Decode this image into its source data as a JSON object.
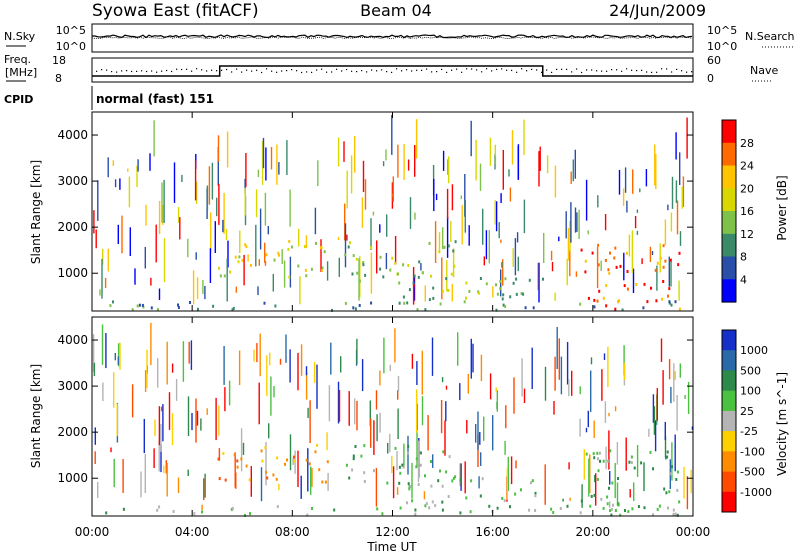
{
  "header": {
    "station": "Syowa East (fitACF)",
    "beam": "Beam 04",
    "date": "24/Jun/2009"
  },
  "noise_panel": {
    "left_label": "N.Sky",
    "right_label": "N.Search",
    "left_ticks": [
      "10^5",
      "10^0"
    ],
    "right_ticks": [
      "10^5",
      "10^0"
    ]
  },
  "freq_panel": {
    "left_label_1": "Freq.",
    "left_label_2": "[MHz]",
    "left_ticks": [
      "18",
      "8"
    ],
    "right_label": "Nave",
    "right_ticks": [
      "60",
      "0"
    ]
  },
  "cpid": {
    "label": "CPID",
    "value": "normal (fast) 151"
  },
  "power_panel": {
    "ylabel": "Slant Range [km]",
    "yticks": [
      "4000",
      "3000",
      "2000",
      "1000"
    ],
    "colorbar_label": "Power [dB]",
    "colorbar_ticks": [
      "28",
      "24",
      "20",
      "16",
      "12",
      "8",
      "4"
    ],
    "colorbar_colors": [
      "#ff0000",
      "#ff6a00",
      "#ffc400",
      "#d8d800",
      "#7fc24a",
      "#3a8a6a",
      "#2a4fa8",
      "#0000ff"
    ]
  },
  "velocity_panel": {
    "ylabel": "Slant Range [km]",
    "yticks": [
      "4000",
      "3000",
      "2000",
      "1000"
    ],
    "colorbar_label": "Velocity [m s^-1]",
    "colorbar_ticks": [
      "1000",
      "500",
      "100",
      "25",
      "-25",
      "-100",
      "-500",
      "-1000"
    ],
    "colorbar_colors": [
      "#1530c8",
      "#2a6aa8",
      "#2e8a4a",
      "#4cc040",
      "#b4b4b4",
      "#ffd000",
      "#ff8c00",
      "#ff4a00",
      "#ff0000"
    ]
  },
  "xaxis": {
    "ticks": [
      "00:00",
      "04:00",
      "08:00",
      "12:00",
      "16:00",
      "20:00",
      "00:00"
    ],
    "label": "Time UT"
  },
  "chart_data": {
    "type": "heatmap",
    "title": "Syowa East (fitACF) Beam 04 24/Jun/2009",
    "x_range_hours": [
      0,
      24
    ],
    "y_range_km": [
      180,
      4500
    ],
    "panels": [
      "Power [dB]",
      "Velocity [m s^-1]"
    ],
    "echo_regions": [
      {
        "t0": 0.0,
        "t1": 24.0,
        "r0": 180,
        "r1": 380,
        "power_db": 8,
        "velocity": 100
      },
      {
        "t0": 5.0,
        "t1": 9.5,
        "r0": 900,
        "r1": 1700,
        "power_db": 16,
        "velocity": -300
      },
      {
        "t0": 10.0,
        "t1": 14.5,
        "r0": 800,
        "r1": 1700,
        "power_db": 14,
        "velocity": 300
      },
      {
        "t0": 12.0,
        "t1": 18.0,
        "r0": 250,
        "r1": 1000,
        "power_db": 12,
        "velocity": 100
      },
      {
        "t0": 19.5,
        "t1": 23.5,
        "r0": 200,
        "r1": 1600,
        "power_db": 24,
        "velocity": 100
      }
    ]
  }
}
